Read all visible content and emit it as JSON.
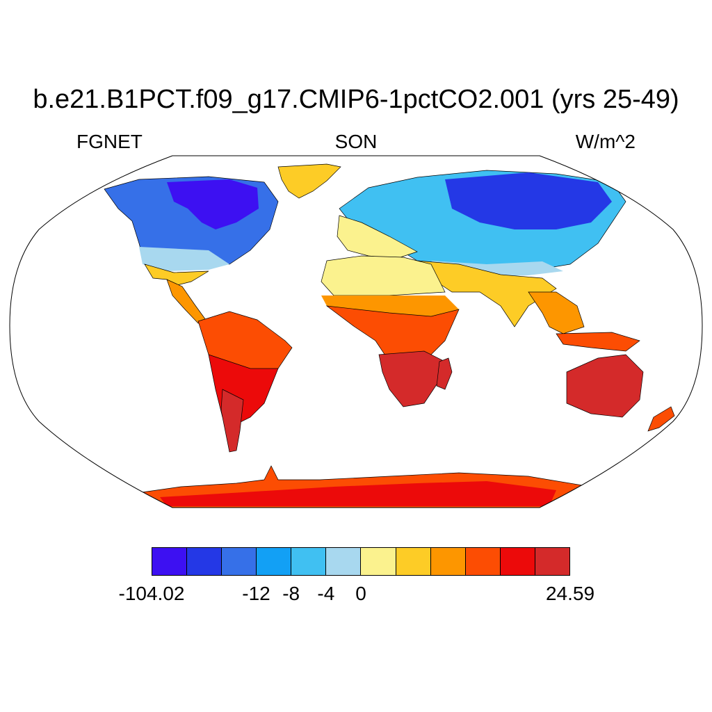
{
  "title": "b.e21.B1PCT.f09_g17.CMIP6-1pctCO2.001 (yrs 25-49)",
  "subtitle": {
    "left": "FGNET",
    "center": "SON",
    "right": "W/m^2"
  },
  "legend": {
    "colors": [
      "#3d10f2",
      "#2438e6",
      "#3670e8",
      "#12a0f5",
      "#40c0f2",
      "#a8d8ef",
      "#fbf28e",
      "#fdcc26",
      "#fd9600",
      "#fc4d03",
      "#ec0a0a",
      "#d42a2a"
    ],
    "tick_labels": [
      "-104.02",
      "-12",
      "-8",
      "-4",
      "0",
      "24.59"
    ],
    "tick_boundary_index": [
      0,
      3,
      4,
      5,
      6,
      12
    ]
  },
  "map": {
    "projection": "Robinson",
    "ocean_color": "#ffffff",
    "outline_color": "#000000"
  }
}
